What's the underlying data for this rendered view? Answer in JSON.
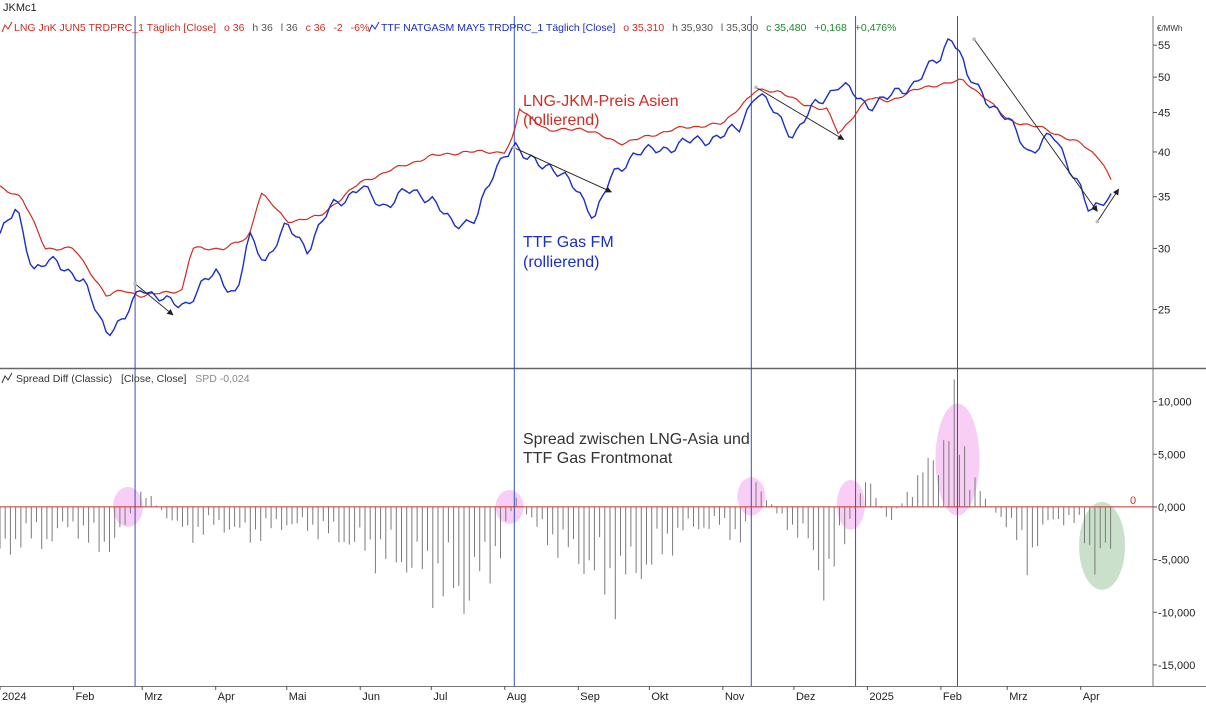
{
  "symbol": "JKMc1",
  "colors": {
    "lng": "#d42a20",
    "ttf": "#1a2ec8",
    "spread_bar": "#7a7a7a",
    "zero_line": "#c83222",
    "vline": "#3050c0",
    "highlight_pink": "#f2a6ee",
    "highlight_green": "#9ec79e",
    "legend_gray": "#555555",
    "legend_green": "#1a8a2a",
    "arrow": "#202020"
  },
  "legend_top": {
    "lng_name": "LNG JnK JUN5 TRDPRC_1 Täglich [Close]",
    "lng_o": "o 36",
    "lng_h": "h 36",
    "lng_l": "l 36",
    "lng_c": "c 36",
    "lng_chg": "-2",
    "lng_pct": "-6%",
    "ttf_name": "TTF NATGASM MAY5 TRDPRC_1 Täglich [Close]",
    "ttf_o": "o 35,310",
    "ttf_h": "h 35,930",
    "ttf_l": "l 35,300",
    "ttf_c": "c 35,480",
    "ttf_chg": "+0,168",
    "ttf_pct": "+0,476%"
  },
  "legend_bottom": {
    "name": "Spread Diff (Classic)",
    "params": "[Close, Close]",
    "spd": "SPD -0,024"
  },
  "annotations": {
    "lng_line1": "LNG-JKM-Preis Asien",
    "lng_line2": "(rollierend)",
    "ttf_line1": "TTF Gas FM",
    "ttf_line2": "(rollierend)",
    "spread_line1": "Spread zwischen LNG-Asia und",
    "spread_line2": "TTF Gas Frontmonat"
  },
  "zero_label": "0",
  "chart_data": [
    {
      "type": "line",
      "unit_label": "€/MWh",
      "y_scale": "log",
      "ylim": [
        21,
        60
      ],
      "y_ticks": [
        "25",
        "30",
        "35",
        "40",
        "45",
        "50",
        "55"
      ],
      "x_ticks": [
        "2024",
        "Feb",
        "Mrz",
        "Apr",
        "Mai",
        "Jun",
        "Jul",
        "Aug",
        "Sep",
        "Okt",
        "Nov",
        "Dez",
        "2025",
        "Feb",
        "Mrz",
        "Apr"
      ],
      "series": [
        {
          "name": "LNG JnK JUN5 TRDPRC_1 Täglich [Close]",
          "x": [
            "2024-01-01",
            "2024-01-10",
            "2024-01-20",
            "2024-02-01",
            "2024-02-15",
            "2024-02-22",
            "2024-03-01",
            "2024-03-10",
            "2024-03-18",
            "2024-03-22",
            "2024-04-05",
            "2024-04-15",
            "2024-04-20",
            "2024-05-01",
            "2024-05-15",
            "2024-06-01",
            "2024-06-15",
            "2024-07-01",
            "2024-07-15",
            "2024-08-01",
            "2024-08-05",
            "2024-08-07",
            "2024-08-20",
            "2024-09-01",
            "2024-09-20",
            "2024-10-01",
            "2024-10-15",
            "2024-11-01",
            "2024-11-15",
            "2024-11-25",
            "2024-12-05",
            "2024-12-15",
            "2024-12-20",
            "2025-01-01",
            "2025-01-10",
            "2025-01-20",
            "2025-02-01",
            "2025-02-10",
            "2025-02-20",
            "2025-03-01",
            "2025-03-15",
            "2025-04-01",
            "2025-04-10",
            "2025-04-15"
          ],
          "values": [
            36,
            35,
            30,
            30,
            26,
            26.5,
            26,
            26.3,
            26.5,
            30,
            30,
            31,
            35.5,
            32.5,
            33,
            36.5,
            38,
            39.5,
            40,
            40,
            42,
            45.5,
            42.5,
            43,
            41,
            42,
            43,
            43.5,
            48,
            48,
            46,
            45.5,
            42,
            47,
            46.5,
            48,
            49,
            49.5,
            47,
            44,
            43,
            41,
            39,
            36
          ]
        },
        {
          "name": "TTF NATGASM MAY5 TRDPRC_1 Täglich [Close]",
          "x": [
            "2024-01-01",
            "2024-01-08",
            "2024-01-15",
            "2024-01-25",
            "2024-02-05",
            "2024-02-15",
            "2024-02-22",
            "2024-03-01",
            "2024-03-06",
            "2024-03-12",
            "2024-03-20",
            "2024-04-01",
            "2024-04-10",
            "2024-04-15",
            "2024-04-22",
            "2024-05-01",
            "2024-05-10",
            "2024-05-20",
            "2024-06-01",
            "2024-06-10",
            "2024-06-20",
            "2024-07-01",
            "2024-07-10",
            "2024-07-20",
            "2024-08-01",
            "2024-08-05",
            "2024-08-10",
            "2024-08-20",
            "2024-09-01",
            "2024-09-08",
            "2024-09-15",
            "2024-09-25",
            "2024-10-01",
            "2024-10-15",
            "2024-11-01",
            "2024-11-08",
            "2024-11-15",
            "2024-11-20",
            "2024-12-01",
            "2024-12-10",
            "2024-12-20",
            "2025-01-01",
            "2025-01-10",
            "2025-01-20",
            "2025-02-01",
            "2025-02-05",
            "2025-02-08",
            "2025-02-12",
            "2025-02-20",
            "2025-03-01",
            "2025-03-10",
            "2025-03-20",
            "2025-04-01",
            "2025-04-05",
            "2025-04-10",
            "2025-04-15"
          ],
          "values": [
            31,
            34,
            28,
            29,
            27,
            23.5,
            24,
            27,
            26,
            25.5,
            25.5,
            28,
            26,
            31,
            29,
            32,
            30,
            34,
            36,
            34,
            35.5,
            35,
            32,
            33,
            40,
            41,
            39,
            38.5,
            35.5,
            33,
            37,
            40,
            40,
            41,
            42,
            43,
            48,
            46,
            42,
            46,
            49,
            46,
            47,
            49,
            53,
            57,
            55,
            50,
            47,
            44,
            40,
            42,
            36,
            33,
            34.5,
            35.5
          ]
        }
      ]
    },
    {
      "type": "bar",
      "name": "Spread Diff (Classic)",
      "ylim": [
        -17000,
        13000
      ],
      "y_ticks": [
        "10,000",
        "5,000",
        "0,000",
        "-5,000",
        "-10,000",
        "-15,000"
      ],
      "x": [
        "2024-01-01",
        "2024-01-10",
        "2024-01-20",
        "2024-02-01",
        "2024-02-10",
        "2024-02-20",
        "2024-03-01",
        "2024-03-10",
        "2024-03-20",
        "2024-04-01",
        "2024-04-15",
        "2024-05-01",
        "2024-05-15",
        "2024-06-01",
        "2024-06-15",
        "2024-07-01",
        "2024-07-15",
        "2024-08-01",
        "2024-08-05",
        "2024-08-15",
        "2024-09-01",
        "2024-09-15",
        "2024-10-01",
        "2024-10-15",
        "2024-11-01",
        "2024-11-10",
        "2024-11-15",
        "2024-11-25",
        "2024-12-05",
        "2024-12-15",
        "2024-12-25",
        "2025-01-01",
        "2025-01-10",
        "2025-01-20",
        "2025-02-01",
        "2025-02-05",
        "2025-02-10",
        "2025-02-20",
        "2025-03-01",
        "2025-03-10",
        "2025-03-20",
        "2025-04-01",
        "2025-04-08",
        "2025-04-15"
      ],
      "values": [
        -5000,
        -2500,
        -3000,
        -1500,
        -3500,
        -3000,
        1500,
        -500,
        -2500,
        -1500,
        -2500,
        -1500,
        -2000,
        -3500,
        -4500,
        -6000,
        -8000,
        -3000,
        1000,
        -2000,
        -4500,
        -7000,
        -5000,
        -2000,
        -1500,
        -3000,
        2500,
        -1000,
        -2500,
        -7000,
        -1000,
        2500,
        -1500,
        2000,
        5000,
        9000,
        5000,
        500,
        -1500,
        -4500,
        -1000,
        -1500,
        -5500,
        -3500
      ]
    }
  ]
}
